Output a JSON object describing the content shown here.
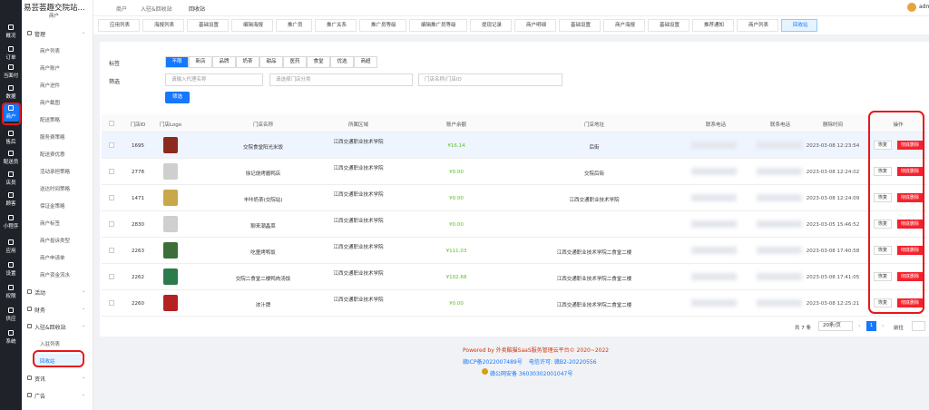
{
  "header": {
    "title": "易芸荟趣交院站...",
    "subtitle": "商户",
    "user": "adm"
  },
  "breadcrumb": [
    "商户",
    "入驻&回收站",
    "回收站"
  ],
  "sidebar": [
    "概况",
    "订单",
    "当面付",
    "数据",
    "商户",
    "售后",
    "配送员",
    "店员",
    "顾客",
    "小程序",
    "应用",
    "设置",
    "权限",
    "供应",
    "系统"
  ],
  "menu": [
    {
      "label": "管理",
      "children": [
        "商户列表",
        "商户账户",
        "商户进件",
        "商户截图",
        "配送策略",
        "服务费策略",
        "配送费优惠",
        "活动承担策略",
        "送达时间策略",
        "保证金策略",
        "商户标签",
        "商户投诉类型",
        "商户申请单",
        "商户资金流水"
      ]
    },
    {
      "label": "活动"
    },
    {
      "label": "财务"
    },
    {
      "label": "入驻&回收站",
      "children": [
        "入驻列表",
        "回收站"
      ]
    },
    {
      "label": "资讯"
    },
    {
      "label": "广告"
    }
  ],
  "tabs": [
    "应用列表",
    "海报列表",
    "基础设置",
    "编辑海报",
    "推广员",
    "推广关系",
    "推广员等级",
    "编辑推广员等级",
    "提现记录",
    "商户明细",
    "基础设置",
    "商户海报",
    "基础设置",
    "推荐通知",
    "商户列表",
    "回收站"
  ],
  "filters": {
    "tag_label": "标签",
    "tags": [
      "不限",
      "新店",
      "品牌",
      "奶茶",
      "甜品",
      "医药",
      "食堂",
      "优选",
      "商超"
    ],
    "filter_label": "筛选",
    "inputs": [
      "请输入代理名称",
      "请选择门店分类",
      "门店名称/门店ID"
    ],
    "button": "筛选"
  },
  "table": {
    "headers": [
      "门店ID",
      "门店Logo",
      "门店名称",
      "所属区域",
      "账户余额",
      "门店地址",
      "联系电话",
      "联系电话",
      "删除时间",
      "操作"
    ],
    "rows": [
      {
        "id": "1695",
        "name": "交院食堂阳光米饭",
        "area": "江西交通职业技术学院",
        "balance": "¥16.14",
        "address": "后街",
        "time": "2023-03-08 12:23:54"
      },
      {
        "id": "2778",
        "name": "徐记烧烤酱鸭店",
        "area": "江西交通职业技术学院",
        "balance": "¥0.00",
        "address": "交院后街",
        "time": "2023-03-08 12:24:02"
      },
      {
        "id": "1471",
        "name": "丰咔奶茶(交院站)",
        "area": "江西交通职业技术学院",
        "balance": "¥0.00",
        "address": "江西交通职业技术学院",
        "time": "2023-03-08 12:24:09"
      },
      {
        "id": "2830",
        "name": "聊来潮晶菜",
        "area": "江西交通职业技术学院",
        "balance": "¥0.00",
        "time": "2023-03-05 15:46:52"
      },
      {
        "id": "2263",
        "name": "吃童烤鸭饭",
        "area": "江西交通职业技术学院",
        "balance": "¥111.03",
        "address": "江西交通职业技术学院二食堂二楼",
        "time": "2023-03-08 17:40:58"
      },
      {
        "id": "2262",
        "name": "交院二食堂二楼鸭肉汤饭",
        "area": "江西交通职业技术学院",
        "balance": "¥102.68",
        "address": "江西交通职业技术学院二食堂二楼",
        "time": "2023-03-08 17:41:05"
      },
      {
        "id": "2260",
        "name": "浓汁牌",
        "area": "江西交通职业技术学院",
        "balance": "¥0.00",
        "address": "江西交通职业技术学院二食堂二楼",
        "time": "2023-03-08 12:25:21"
      }
    ],
    "actions": [
      "恢复",
      "彻底删除"
    ]
  },
  "pagination": {
    "total": "共 7 条",
    "page_size": "20条/页",
    "goto": "前往",
    "page": "1"
  },
  "footer": {
    "powered": "Powered by 外卖酷猫SaaS服务管理云平台© 2020~2022",
    "icp": "赣ICP备2022007489号",
    "license": "电信许可: 赣B2-20220556",
    "police": "赣公网安备 36030302001047号"
  }
}
